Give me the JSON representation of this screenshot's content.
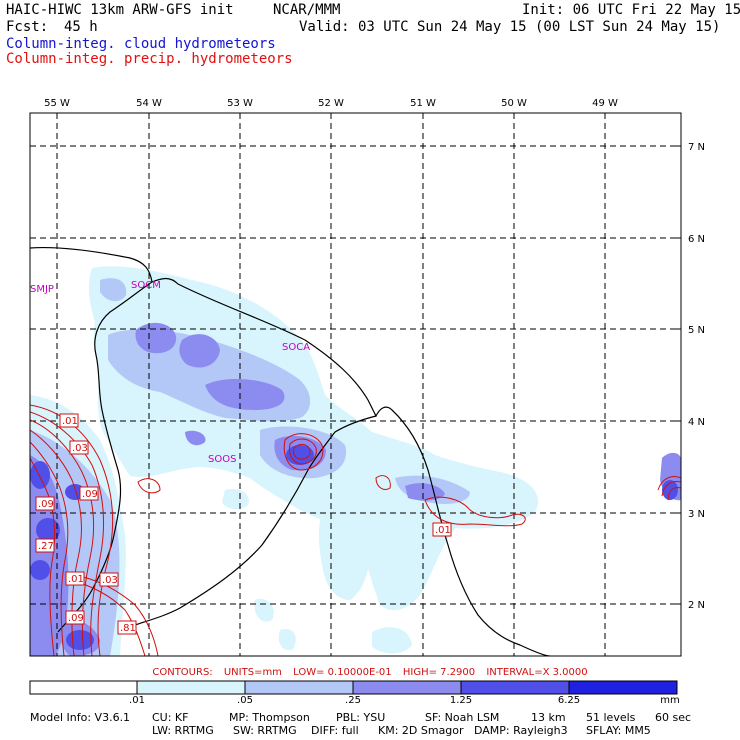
{
  "header": {
    "model": "HAIC-HIWC 13km ARW-GFS init",
    "org": "NCAR/MMM",
    "init": "Init: 06 UTC Fri 22 May 15",
    "fcst_label": "Fcst:",
    "fcst_value": "45 h",
    "valid": "Valid: 03 UTC Sun 24 May 15 (00 LST Sun 24 May 15)",
    "field_cloud": "Column-integ. cloud hydrometeors",
    "field_precip": "Column-integ. precip. hydrometeors"
  },
  "colors": {
    "cloud_text": "#1414d2",
    "precip_text": "#e01010",
    "shade_1": "#d8f4fc",
    "shade_2": "#b4c8f8",
    "shade_3": "#8c8cf0",
    "shade_4": "#5050e8",
    "shade_5": "#2020e0",
    "contour": "#d01010",
    "station": "#c000c0"
  },
  "map": {
    "lon_labels": [
      "55 W",
      "54 W",
      "53 W",
      "52 W",
      "51 W",
      "50 W",
      "49 W"
    ],
    "lat_labels": [
      "7 N",
      "6 N",
      "5 N",
      "4 N",
      "3 N",
      "2 N"
    ],
    "stations": [
      "SMJP",
      "SOCM",
      "SOCA",
      "SOOS"
    ],
    "contour_labels": [
      ".01",
      ".03",
      ".09",
      ".09",
      ".27",
      ".01",
      ".03",
      ".09",
      ".81",
      ".01"
    ]
  },
  "contours_line": {
    "label": "CONTOURS:",
    "units": "UNITS=mm",
    "low": "LOW= 0.10000E-01",
    "high": "HIGH= 7.2900",
    "interval": "INTERVAL=X 3.0000"
  },
  "colorbar": {
    "labels": [
      ".01",
      ".05",
      ".25",
      "1.25",
      "6.25",
      "mm"
    ],
    "colors": [
      "#ffffff",
      "#d8f4fc",
      "#b4c8f8",
      "#8c8cf0",
      "#5050e8",
      "#2020e0"
    ]
  },
  "footer": {
    "row1": [
      "Model Info: V3.6.1",
      "CU: KF",
      "MP: Thompson",
      "PBL: YSU",
      "SF: Noah LSM",
      "13 km",
      "51 levels",
      "60 sec"
    ],
    "row2": [
      "LW: RRTMG",
      "SW: RRTMG",
      "DIFF: full",
      "KM: 2D Smagor",
      "DAMP: Rayleigh3",
      "SFLAY: MM5"
    ]
  }
}
